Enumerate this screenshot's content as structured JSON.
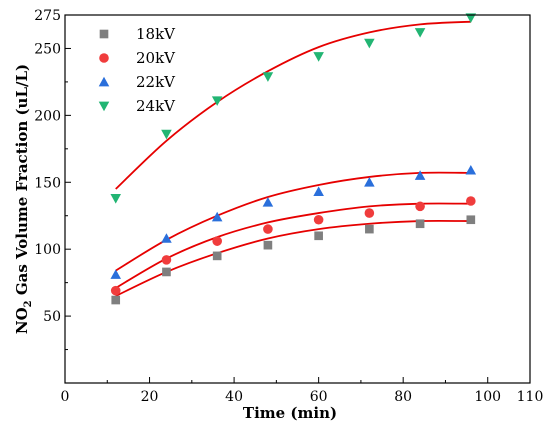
{
  "chart_data": {
    "type": "scatter",
    "title": "",
    "xlabel": "Time (min)",
    "ylabel_main": "NO",
    "ylabel_sub": "2",
    "ylabel_rest": " Gas Volume Fraction (uL/L)",
    "xlim": [
      0,
      110
    ],
    "ylim": [
      0,
      275
    ],
    "x_ticks": [
      0,
      20,
      40,
      60,
      80,
      100,
      110
    ],
    "x_tick_labels": [
      "0",
      "20",
      "40",
      "60",
      "80",
      "100",
      "110"
    ],
    "y_ticks": [
      50,
      100,
      150,
      200,
      250,
      275
    ],
    "y_tick_labels": [
      "50",
      "100",
      "150",
      "200",
      "250",
      "275"
    ],
    "grid": false,
    "legend_position": "top-left",
    "x": [
      12,
      24,
      36,
      48,
      60,
      72,
      84,
      96
    ],
    "series": [
      {
        "name": "18kV",
        "marker": "square",
        "color": "#7f7f7f",
        "values": [
          62,
          83,
          95,
          103,
          110,
          115,
          119,
          122
        ],
        "fit": [
          65,
          83,
          97,
          108,
          115,
          119,
          121,
          121
        ]
      },
      {
        "name": "20kV",
        "marker": "circle",
        "color": "#f03c3c",
        "values": [
          69,
          92,
          106,
          115,
          122,
          127,
          132,
          136
        ],
        "fit": [
          71,
          93,
          109,
          120,
          127,
          132,
          134,
          134
        ]
      },
      {
        "name": "22kV",
        "marker": "triangle-up",
        "color": "#2a6fdb",
        "values": [
          81,
          108,
          124,
          135,
          143,
          150,
          155,
          159
        ],
        "fit": [
          84,
          107,
          125,
          139,
          148,
          154,
          157,
          157
        ]
      },
      {
        "name": "24kV",
        "marker": "triangle-down",
        "color": "#22b573",
        "values": [
          138,
          186,
          211,
          229,
          244,
          254,
          262,
          273
        ],
        "fit": [
          145,
          181,
          210,
          233,
          251,
          262,
          268,
          270
        ]
      }
    ],
    "fit_color": "#e60000"
  }
}
